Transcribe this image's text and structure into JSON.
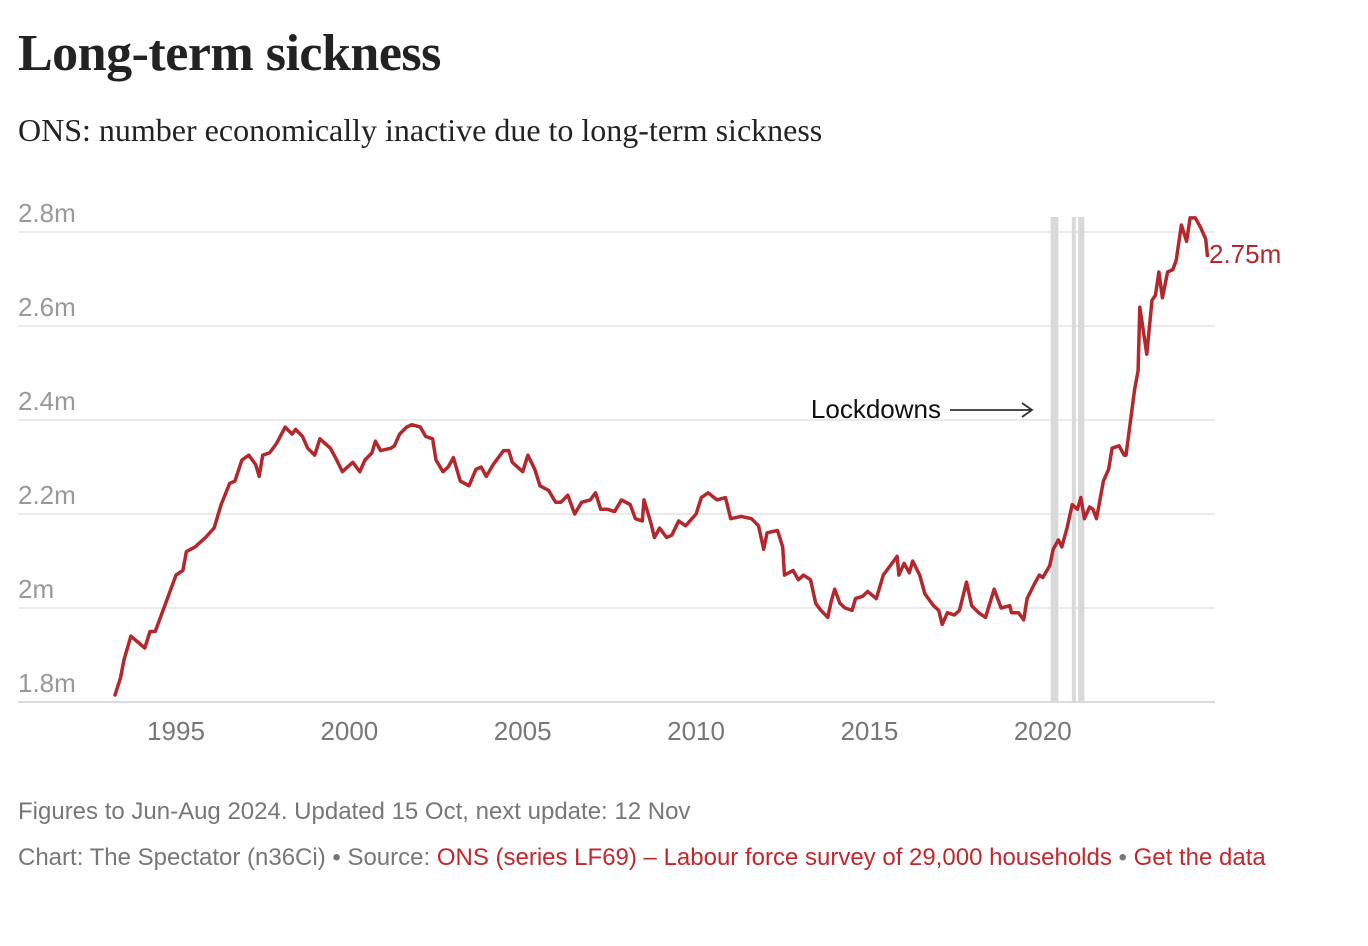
{
  "title": "Long-term sickness",
  "subtitle": "ONS: number economically inactive due to long-term sickness",
  "footer": {
    "note": "Figures to Jun-Aug 2024. Updated 15 Oct, next update: 12 Nov",
    "credit": "Chart: The Spectator (n36Ci) • Source: ",
    "source_link": "ONS (series LF69) – Labour force survey of 29,000 households",
    "separator": " • ",
    "data_link": "Get the data"
  },
  "colors": {
    "line": "#b3282d",
    "band": "#d9d9d9",
    "grid": "#e4e4e4",
    "axis_text": "#999999",
    "link": "#c1272d"
  },
  "chart_data": {
    "type": "line",
    "title": "Long-term sickness",
    "subtitle": "ONS: number economically inactive due to long-term sickness",
    "xlabel": "",
    "ylabel": "",
    "xlim": [
      1993,
      2025
    ],
    "ylim": [
      1.8,
      2.8
    ],
    "x_ticks": [
      1995,
      2000,
      2005,
      2010,
      2015,
      2020
    ],
    "y_ticks": [
      {
        "v": 1.8,
        "label": "1.8m"
      },
      {
        "v": 2.0,
        "label": "2m"
      },
      {
        "v": 2.2,
        "label": "2.2m"
      },
      {
        "v": 2.4,
        "label": "2.4m"
      },
      {
        "v": 2.6,
        "label": "2.6m"
      },
      {
        "v": 2.8,
        "label": "2.8m"
      }
    ],
    "grid": true,
    "end_label": "2.75m",
    "annotation": {
      "text": "Lockdowns",
      "arrow": "right"
    },
    "shaded_bands": [
      [
        2020.23,
        2020.45
      ],
      [
        2020.84,
        2020.93
      ],
      [
        2021.02,
        2021.2
      ]
    ],
    "series": [
      {
        "unit": "millions",
        "points": [
          [
            1993.24,
            1.815
          ],
          [
            1993.4,
            1.851
          ],
          [
            1993.5,
            1.89
          ],
          [
            1993.7,
            1.94
          ],
          [
            1994.1,
            1.915
          ],
          [
            1994.25,
            1.95
          ],
          [
            1994.4,
            1.95
          ],
          [
            1994.5,
            1.97
          ],
          [
            1994.8,
            2.03
          ],
          [
            1995.0,
            2.07
          ],
          [
            1995.2,
            2.08
          ],
          [
            1995.3,
            2.12
          ],
          [
            1995.55,
            2.13
          ],
          [
            1995.85,
            2.15
          ],
          [
            1996.1,
            2.17
          ],
          [
            1996.3,
            2.22
          ],
          [
            1996.55,
            2.265
          ],
          [
            1996.7,
            2.27
          ],
          [
            1996.9,
            2.315
          ],
          [
            1997.1,
            2.325
          ],
          [
            1997.3,
            2.305
          ],
          [
            1997.4,
            2.28
          ],
          [
            1997.5,
            2.325
          ],
          [
            1997.7,
            2.33
          ],
          [
            1997.9,
            2.35
          ],
          [
            1998.15,
            2.385
          ],
          [
            1998.35,
            2.37
          ],
          [
            1998.45,
            2.38
          ],
          [
            1998.65,
            2.365
          ],
          [
            1998.8,
            2.34
          ],
          [
            1999.0,
            2.325
          ],
          [
            1999.15,
            2.36
          ],
          [
            1999.45,
            2.34
          ],
          [
            1999.6,
            2.32
          ],
          [
            1999.8,
            2.29
          ],
          [
            2000.1,
            2.31
          ],
          [
            2000.3,
            2.29
          ],
          [
            2000.45,
            2.315
          ],
          [
            2000.65,
            2.33
          ],
          [
            2000.75,
            2.355
          ],
          [
            2000.9,
            2.335
          ],
          [
            2001.2,
            2.34
          ],
          [
            2001.3,
            2.345
          ],
          [
            2001.45,
            2.37
          ],
          [
            2001.65,
            2.385
          ],
          [
            2001.8,
            2.39
          ],
          [
            2002.05,
            2.385
          ],
          [
            2002.2,
            2.365
          ],
          [
            2002.4,
            2.36
          ],
          [
            2002.5,
            2.315
          ],
          [
            2002.7,
            2.29
          ],
          [
            2002.85,
            2.3
          ],
          [
            2003.0,
            2.32
          ],
          [
            2003.2,
            2.27
          ],
          [
            2003.45,
            2.26
          ],
          [
            2003.65,
            2.295
          ],
          [
            2003.8,
            2.3
          ],
          [
            2003.95,
            2.28
          ],
          [
            2004.15,
            2.305
          ],
          [
            2004.45,
            2.335
          ],
          [
            2004.6,
            2.335
          ],
          [
            2004.7,
            2.31
          ],
          [
            2005.0,
            2.29
          ],
          [
            2005.15,
            2.325
          ],
          [
            2005.35,
            2.295
          ],
          [
            2005.5,
            2.26
          ],
          [
            2005.75,
            2.25
          ],
          [
            2005.95,
            2.225
          ],
          [
            2006.1,
            2.225
          ],
          [
            2006.3,
            2.24
          ],
          [
            2006.5,
            2.2
          ],
          [
            2006.7,
            2.225
          ],
          [
            2006.95,
            2.23
          ],
          [
            2007.1,
            2.245
          ],
          [
            2007.25,
            2.21
          ],
          [
            2007.45,
            2.21
          ],
          [
            2007.65,
            2.205
          ],
          [
            2007.85,
            2.23
          ],
          [
            2008.1,
            2.22
          ],
          [
            2008.25,
            2.19
          ],
          [
            2008.45,
            2.185
          ],
          [
            2008.5,
            2.23
          ],
          [
            2008.7,
            2.18
          ],
          [
            2008.8,
            2.15
          ],
          [
            2008.95,
            2.17
          ],
          [
            2009.15,
            2.15
          ],
          [
            2009.3,
            2.155
          ],
          [
            2009.5,
            2.185
          ],
          [
            2009.7,
            2.175
          ],
          [
            2010.0,
            2.2
          ],
          [
            2010.15,
            2.235
          ],
          [
            2010.35,
            2.245
          ],
          [
            2010.6,
            2.23
          ],
          [
            2010.85,
            2.235
          ],
          [
            2011.0,
            2.19
          ],
          [
            2011.3,
            2.195
          ],
          [
            2011.6,
            2.19
          ],
          [
            2011.8,
            2.175
          ],
          [
            2011.95,
            2.125
          ],
          [
            2012.05,
            2.16
          ],
          [
            2012.35,
            2.165
          ],
          [
            2012.5,
            2.13
          ],
          [
            2012.55,
            2.07
          ],
          [
            2012.8,
            2.08
          ],
          [
            2012.95,
            2.06
          ],
          [
            2013.1,
            2.07
          ],
          [
            2013.3,
            2.06
          ],
          [
            2013.45,
            2.01
          ],
          [
            2013.6,
            1.995
          ],
          [
            2013.8,
            1.98
          ],
          [
            2013.9,
            2.015
          ],
          [
            2014.0,
            2.04
          ],
          [
            2014.15,
            2.01
          ],
          [
            2014.3,
            2.0
          ],
          [
            2014.5,
            1.995
          ],
          [
            2014.6,
            2.02
          ],
          [
            2014.8,
            2.025
          ],
          [
            2014.95,
            2.035
          ],
          [
            2015.2,
            2.02
          ],
          [
            2015.4,
            2.07
          ],
          [
            2015.7,
            2.1
          ],
          [
            2015.8,
            2.11
          ],
          [
            2015.85,
            2.07
          ],
          [
            2016.0,
            2.095
          ],
          [
            2016.15,
            2.075
          ],
          [
            2016.25,
            2.1
          ],
          [
            2016.45,
            2.07
          ],
          [
            2016.6,
            2.03
          ],
          [
            2016.85,
            2.005
          ],
          [
            2017.0,
            1.995
          ],
          [
            2017.1,
            1.965
          ],
          [
            2017.25,
            1.99
          ],
          [
            2017.45,
            1.985
          ],
          [
            2017.6,
            1.995
          ],
          [
            2017.8,
            2.055
          ],
          [
            2017.95,
            2.005
          ],
          [
            2018.15,
            1.99
          ],
          [
            2018.35,
            1.98
          ],
          [
            2018.6,
            2.04
          ],
          [
            2018.8,
            2.0
          ],
          [
            2019.05,
            2.005
          ],
          [
            2019.1,
            1.99
          ],
          [
            2019.3,
            1.99
          ],
          [
            2019.45,
            1.975
          ],
          [
            2019.55,
            2.02
          ],
          [
            2019.75,
            2.05
          ],
          [
            2019.9,
            2.07
          ],
          [
            2020.0,
            2.065
          ],
          [
            2020.2,
            2.09
          ],
          [
            2020.3,
            2.125
          ],
          [
            2020.45,
            2.145
          ],
          [
            2020.55,
            2.13
          ],
          [
            2020.7,
            2.17
          ],
          [
            2020.85,
            2.22
          ],
          [
            2021.0,
            2.21
          ],
          [
            2021.1,
            2.235
          ],
          [
            2021.2,
            2.19
          ],
          [
            2021.35,
            2.215
          ],
          [
            2021.45,
            2.21
          ],
          [
            2021.55,
            2.19
          ],
          [
            2021.75,
            2.27
          ],
          [
            2021.9,
            2.295
          ],
          [
            2022.0,
            2.34
          ],
          [
            2022.2,
            2.345
          ],
          [
            2022.35,
            2.325
          ],
          [
            2022.4,
            2.325
          ],
          [
            2022.65,
            2.465
          ],
          [
            2022.75,
            2.505
          ],
          [
            2022.8,
            2.64
          ],
          [
            2023.0,
            2.54
          ],
          [
            2023.15,
            2.655
          ],
          [
            2023.25,
            2.665
          ],
          [
            2023.35,
            2.715
          ],
          [
            2023.45,
            2.66
          ],
          [
            2023.6,
            2.715
          ],
          [
            2023.75,
            2.72
          ],
          [
            2023.85,
            2.74
          ],
          [
            2024.0,
            2.815
          ],
          [
            2024.15,
            2.78
          ],
          [
            2024.25,
            2.83
          ],
          [
            2024.4,
            2.83
          ],
          [
            2024.55,
            2.81
          ],
          [
            2024.7,
            2.785
          ],
          [
            2024.75,
            2.75
          ]
        ]
      }
    ]
  }
}
